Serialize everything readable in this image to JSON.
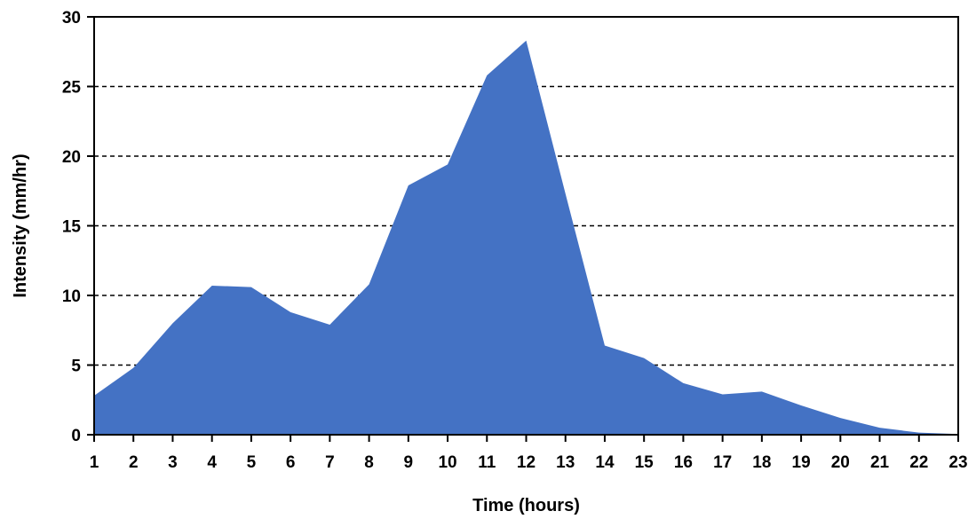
{
  "chart_data": {
    "type": "area",
    "title": "",
    "xlabel": "Time (hours)",
    "ylabel": "Intensity (mm/hr)",
    "x": [
      1,
      2,
      3,
      4,
      5,
      6,
      7,
      8,
      9,
      10,
      11,
      12,
      13,
      14,
      15,
      16,
      17,
      18,
      19,
      20,
      21,
      22,
      23
    ],
    "x_tick_labels": [
      "1",
      "2",
      "3",
      "4",
      "5",
      "6",
      "7",
      "8",
      "9",
      "10",
      "11",
      "12",
      "13",
      "14",
      "15",
      "16",
      "17",
      "18",
      "19",
      "20",
      "21",
      "22",
      "23"
    ],
    "values": [
      2.8,
      4.8,
      8.0,
      10.7,
      10.6,
      8.8,
      7.9,
      10.8,
      17.9,
      19.4,
      25.8,
      28.3,
      17.3,
      6.4,
      5.5,
      3.7,
      2.9,
      3.1,
      2.1,
      1.2,
      0.5,
      0.15,
      0.05
    ],
    "xlim": [
      1,
      23
    ],
    "ylim": [
      0,
      30
    ],
    "y_ticks": [
      0,
      5,
      10,
      15,
      20,
      25,
      30
    ],
    "y_tick_labels": [
      "0",
      "5",
      "10",
      "15",
      "20",
      "25",
      "30"
    ],
    "grid": "horizontal-dashed",
    "legend": "none",
    "colors": {
      "area_fill": "#4472C4",
      "axis": "#000000",
      "grid": "#000000"
    }
  }
}
